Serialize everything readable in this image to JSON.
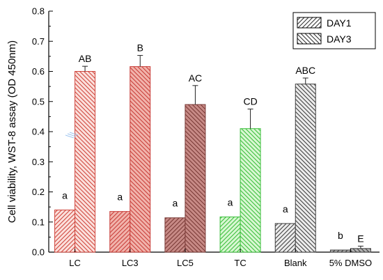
{
  "chart_data": {
    "type": "bar",
    "title": "",
    "xlabel": "",
    "ylabel": "Cell viability, WST-8 assay (OD 450nm)",
    "ylim": [
      0,
      0.8
    ],
    "yticks": [
      "0.0",
      "0.1",
      "0.2",
      "0.3",
      "0.4",
      "0.5",
      "0.6",
      "0.7",
      "0.8"
    ],
    "grid": false,
    "legend_position": "top-right",
    "categories": [
      "LC",
      "LC3",
      "LC5",
      "TC",
      "Blank",
      "5% DMSO"
    ],
    "category_colors": [
      "#fbe0dc",
      "#f1b3ab",
      "#c78a86",
      "#d8f7d2",
      "#ececec",
      "#b4b4b4"
    ],
    "category_stroke": [
      "#d0463d",
      "#c93f3a",
      "#7a3a36",
      "#3cbf3c",
      "#404040",
      "#404040"
    ],
    "series": [
      {
        "name": "DAY1",
        "hatch": "forward",
        "values": [
          0.14,
          0.135,
          0.114,
          0.117,
          0.095,
          0.007
        ],
        "errors": [
          0,
          0,
          0,
          0,
          0,
          0
        ],
        "labels": [
          "a",
          "a",
          "a",
          "a",
          "a",
          "b"
        ]
      },
      {
        "name": "DAY3",
        "hatch": "backward",
        "values": [
          0.6,
          0.616,
          0.49,
          0.41,
          0.558,
          0.012
        ],
        "errors": [
          0.017,
          0.037,
          0.063,
          0.065,
          0.02,
          0.008
        ],
        "labels": [
          "AB",
          "B",
          "AC",
          "CD",
          "ABC",
          "E"
        ]
      }
    ]
  }
}
